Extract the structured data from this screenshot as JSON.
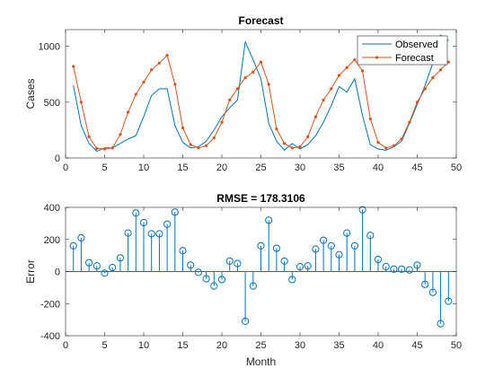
{
  "chart_data": [
    {
      "type": "line",
      "title": "Forecast",
      "xlabel": "",
      "ylabel": "Cases",
      "xlim": [
        0,
        50
      ],
      "ylim": [
        0,
        1150
      ],
      "xticks": [
        "0",
        "5",
        "10",
        "15",
        "20",
        "25",
        "30",
        "35",
        "40",
        "45",
        "50"
      ],
      "yticks": [
        "0",
        "500",
        "1000"
      ],
      "legend_position": "top-right",
      "x": [
        1,
        2,
        3,
        4,
        5,
        6,
        7,
        8,
        9,
        10,
        11,
        12,
        13,
        14,
        15,
        16,
        17,
        18,
        19,
        20,
        21,
        22,
        23,
        24,
        25,
        26,
        27,
        28,
        29,
        30,
        31,
        32,
        33,
        34,
        35,
        36,
        37,
        38,
        39,
        40,
        41,
        42,
        43,
        44,
        45,
        46,
        47,
        48,
        49
      ],
      "series": [
        {
          "name": "Observed",
          "color": "#0072BD",
          "marker": "none",
          "values": [
            650,
            290,
            130,
            60,
            90,
            90,
            130,
            170,
            200,
            370,
            560,
            620,
            620,
            290,
            140,
            90,
            100,
            150,
            250,
            370,
            450,
            520,
            1040,
            880,
            710,
            310,
            150,
            70,
            130,
            80,
            120,
            200,
            320,
            470,
            640,
            590,
            710,
            380,
            120,
            80,
            70,
            100,
            150,
            310,
            480,
            650,
            850,
            1100,
            1050
          ]
        },
        {
          "name": "Forecast",
          "color": "#D95319",
          "marker": "dot",
          "values": [
            820,
            500,
            190,
            85,
            80,
            90,
            210,
            410,
            570,
            680,
            790,
            850,
            920,
            660,
            270,
            120,
            90,
            110,
            180,
            320,
            520,
            620,
            720,
            770,
            860,
            660,
            260,
            130,
            90,
            100,
            190,
            370,
            520,
            620,
            740,
            810,
            880,
            780,
            350,
            140,
            90,
            110,
            170,
            320,
            500,
            620,
            720,
            790,
            860
          ]
        }
      ]
    },
    {
      "type": "stem",
      "title": "RMSE = 178.3106",
      "xlabel": "Month",
      "ylabel": "Error",
      "xlim": [
        0,
        50
      ],
      "ylim": [
        -400,
        400
      ],
      "xticks": [
        "0",
        "5",
        "10",
        "15",
        "20",
        "25",
        "30",
        "35",
        "40",
        "45",
        "50"
      ],
      "yticks": [
        "-400",
        "-200",
        "0",
        "200",
        "400"
      ],
      "color": "#0072BD",
      "marker": "circle",
      "x": [
        1,
        2,
        3,
        4,
        5,
        6,
        7,
        8,
        9,
        10,
        11,
        12,
        13,
        14,
        15,
        16,
        17,
        18,
        19,
        20,
        21,
        22,
        23,
        24,
        25,
        26,
        27,
        28,
        29,
        30,
        31,
        32,
        33,
        34,
        35,
        36,
        37,
        38,
        39,
        40,
        41,
        42,
        43,
        44,
        45,
        46,
        47,
        48,
        49
      ],
      "values": [
        160,
        210,
        55,
        35,
        -10,
        25,
        85,
        240,
        365,
        305,
        235,
        235,
        295,
        370,
        130,
        40,
        -5,
        -45,
        -90,
        -50,
        65,
        50,
        -310,
        -90,
        160,
        320,
        145,
        65,
        -50,
        30,
        35,
        140,
        195,
        160,
        105,
        240,
        160,
        385,
        225,
        75,
        30,
        15,
        15,
        10,
        40,
        -80,
        -130,
        -325,
        -185
      ]
    }
  ]
}
